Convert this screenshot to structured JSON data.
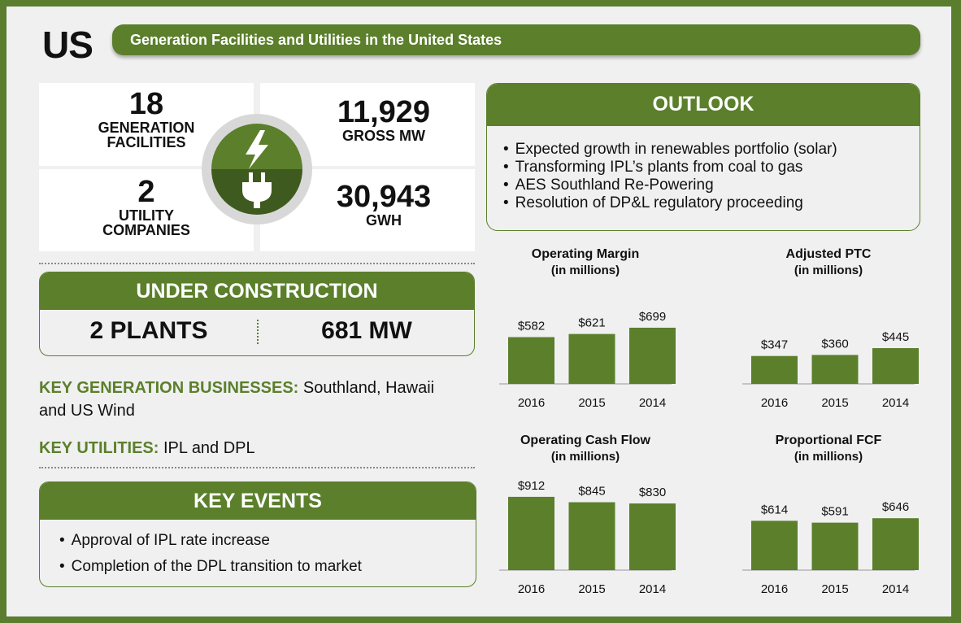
{
  "header": {
    "region": "US",
    "banner": "Generation Facilities and Utilities in the United States"
  },
  "stats": {
    "facilities": {
      "value": "18",
      "label1": "GENERATION",
      "label2": "FACILITIES"
    },
    "gross_mw": {
      "value": "11,929",
      "label": "GROSS MW"
    },
    "utilities": {
      "value": "2",
      "label1": "UTILITY",
      "label2": "COMPANIES"
    },
    "gwh": {
      "value": "30,943",
      "label": "GWH"
    }
  },
  "construction": {
    "title": "UNDER CONSTRUCTION",
    "plants": "2 PLANTS",
    "mw": "681 MW"
  },
  "key_generation": {
    "label": "KEY GENERATION BUSINESSES:",
    "text": " Southland, Hawaii",
    "text2": "and US Wind"
  },
  "key_utilities": {
    "label": "KEY UTILITIES:",
    "text": " IPL and DPL"
  },
  "events": {
    "title": "KEY EVENTS",
    "items": [
      "Approval of IPL rate increase",
      "Completion of the DPL transition to market"
    ]
  },
  "outlook": {
    "title": "OUTLOOK",
    "items": [
      "Expected growth in renewables portfolio (solar)",
      "Transforming IPL’s plants from coal to gas",
      "AES Southland Re-Powering",
      "Resolution of DP&L regulatory proceeding"
    ]
  },
  "colors": {
    "green": "#5b7f2b",
    "dark_green": "#3f5a1e",
    "background": "#f0f0f0"
  },
  "chart_data": [
    {
      "type": "bar",
      "title": "Operating Margin",
      "subtitle": "(in millions)",
      "categories": [
        "2016",
        "2015",
        "2014"
      ],
      "values": [
        582,
        621,
        699
      ],
      "labels": [
        "$582",
        "$621",
        "$699"
      ]
    },
    {
      "type": "bar",
      "title": "Adjusted PTC",
      "subtitle": "(in millions)",
      "categories": [
        "2016",
        "2015",
        "2014"
      ],
      "values": [
        347,
        360,
        445
      ],
      "labels": [
        "$347",
        "$360",
        "$445"
      ]
    },
    {
      "type": "bar",
      "title": "Operating Cash Flow",
      "subtitle": "(in millions)",
      "categories": [
        "2016",
        "2015",
        "2014"
      ],
      "values": [
        912,
        845,
        830
      ],
      "labels": [
        "$912",
        "$845",
        "$830"
      ]
    },
    {
      "type": "bar",
      "title": "Proportional FCF",
      "subtitle": "(in millions)",
      "categories": [
        "2016",
        "2015",
        "2014"
      ],
      "values": [
        614,
        591,
        646
      ],
      "labels": [
        "$614",
        "$591",
        "$646"
      ]
    }
  ]
}
